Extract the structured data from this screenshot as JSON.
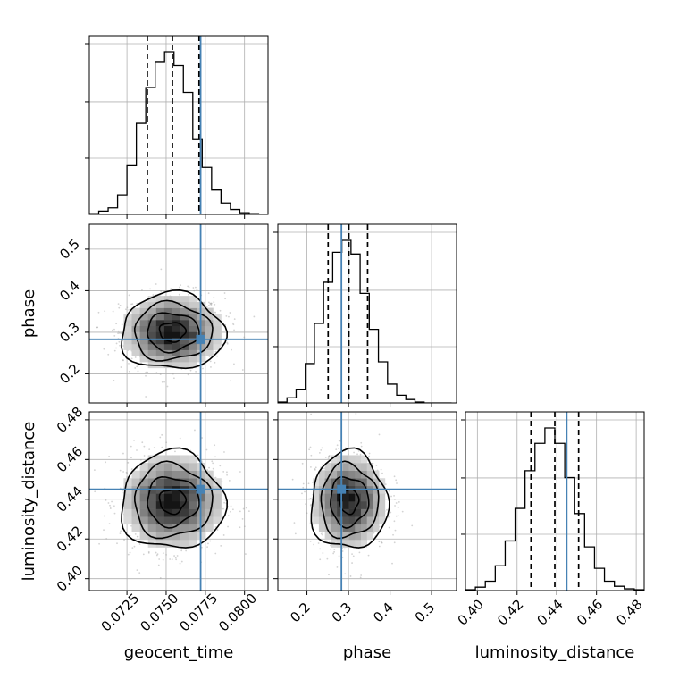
{
  "chart_data": {
    "type": "corner",
    "parameters": [
      "geocent_time",
      "phase",
      "luminosity_distance"
    ],
    "axis_labels": {
      "bottom": [
        "geocent_time",
        "phase",
        "luminosity_distance"
      ],
      "left": [
        "phase",
        "luminosity_distance"
      ]
    },
    "ranges": {
      "geocent_time": [
        0.0701,
        0.0815
      ],
      "phase": [
        0.13,
        0.56
      ],
      "luminosity_distance": [
        0.394,
        0.484
      ]
    },
    "ticks": {
      "geocent_time": [
        0.0725,
        0.075,
        0.0775,
        0.08
      ],
      "phase": [
        0.2,
        0.3,
        0.4,
        0.5
      ],
      "luminosity_distance": [
        0.4,
        0.42,
        0.44,
        0.46,
        0.48
      ]
    },
    "tick_labels": {
      "geocent_time": [
        "0.0725",
        "0.0750",
        "0.0775",
        "0.0800"
      ],
      "phase": [
        "0.2",
        "0.3",
        "0.4",
        "0.5"
      ],
      "luminosity_distance": [
        "0.40",
        "0.42",
        "0.44",
        "0.46",
        "0.48"
      ]
    },
    "truths": {
      "geocent_time": 0.0772,
      "phase": 0.283,
      "luminosity_distance": 0.445
    },
    "quantiles": {
      "geocent_time": [
        0.0738,
        0.0754,
        0.0771
      ],
      "phase": [
        0.251,
        0.301,
        0.346
      ],
      "luminosity_distance": [
        0.427,
        0.439,
        0.451
      ]
    },
    "histograms": {
      "geocent_time": {
        "bin_edges": [
          0.0701,
          0.0707,
          0.0713,
          0.0719,
          0.0725,
          0.0731,
          0.0737,
          0.0743,
          0.0749,
          0.0755,
          0.0761,
          0.0767,
          0.0773,
          0.0779,
          0.0785,
          0.0791,
          0.0797,
          0.0803,
          0.0809,
          0.0815
        ],
        "counts": [
          1,
          4,
          8,
          24,
          60,
          112,
          156,
          188,
          200,
          183,
          150,
          92,
          58,
          30,
          14,
          6,
          2,
          1,
          0
        ]
      },
      "phase": {
        "bin_edges": [
          0.13,
          0.152,
          0.174,
          0.196,
          0.218,
          0.24,
          0.262,
          0.284,
          0.306,
          0.328,
          0.35,
          0.372,
          0.394,
          0.416,
          0.438,
          0.46,
          0.482,
          0.504,
          0.526,
          0.548
        ],
        "counts": [
          1,
          6,
          16,
          46,
          93,
          141,
          176,
          190,
          174,
          128,
          86,
          48,
          22,
          9,
          4,
          1,
          0,
          0,
          0
        ]
      },
      "luminosity_distance": {
        "bin_edges": [
          0.394,
          0.399,
          0.404,
          0.409,
          0.414,
          0.419,
          0.424,
          0.429,
          0.434,
          0.439,
          0.444,
          0.449,
          0.454,
          0.459,
          0.464,
          0.469,
          0.474,
          0.479,
          0.484
        ],
        "counts": [
          1,
          4,
          11,
          29,
          58,
          96,
          140,
          172,
          190,
          172,
          132,
          90,
          51,
          26,
          11,
          5,
          2,
          1
        ]
      }
    },
    "posterior_2d": {
      "geocent_time_phase": {
        "mean": [
          0.0754,
          0.301
        ],
        "sigma": [
          0.00165,
          0.046
        ],
        "contour_levels_sigma": [
          0.5,
          1.0,
          1.5,
          2.0
        ]
      },
      "geocent_time_luminosity_distance": {
        "mean": [
          0.0754,
          0.439
        ],
        "sigma": [
          0.00165,
          0.0123
        ],
        "contour_levels_sigma": [
          0.5,
          1.0,
          1.5,
          2.0
        ]
      },
      "phase_luminosity_distance": {
        "mean": [
          0.301,
          0.439
        ],
        "sigma": [
          0.046,
          0.0123
        ],
        "contour_levels_sigma": [
          0.5,
          1.0,
          1.5,
          2.0
        ]
      }
    },
    "grid": true,
    "colors": {
      "truth": "#4682b4",
      "histogram": "#000000",
      "quantile": "#000000",
      "contour": "#000000",
      "scatter": "#9e9e9e",
      "grid": "#b0b0b0"
    }
  }
}
